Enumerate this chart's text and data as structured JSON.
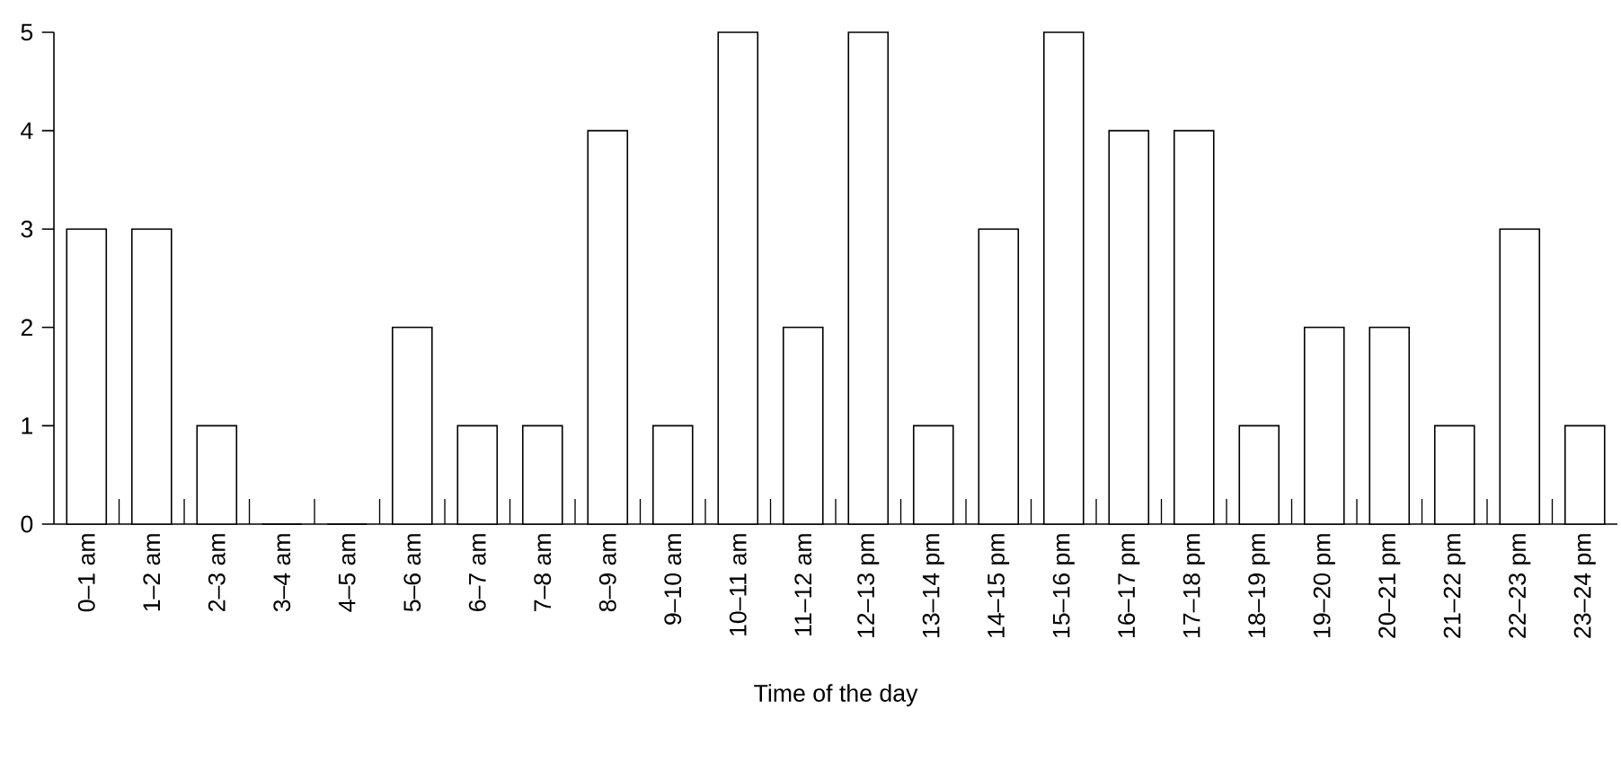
{
  "chart_data": {
    "type": "bar",
    "xlabel": "Time of the day",
    "categories": [
      "0–1 am",
      "1–2 am",
      "2–3 am",
      "3–4 am",
      "4–5 am",
      "5–6 am",
      "6–7 am",
      "7–8 am",
      "8–9 am",
      "9–10 am",
      "10–11 am",
      "11–12 am",
      "12–13 pm",
      "13–14 pm",
      "14–15 pm",
      "15–16 pm",
      "16–17 pm",
      "17–18 pm",
      "18–19 pm",
      "19–20 pm",
      "20–21 pm",
      "21–22 pm",
      "22–23 pm",
      "23–24 pm"
    ],
    "values": [
      3,
      3,
      1,
      0,
      0,
      2,
      1,
      1,
      4,
      1,
      5,
      2,
      5,
      1,
      3,
      5,
      4,
      4,
      1,
      2,
      2,
      1,
      3,
      1
    ],
    "color": "#ffffff",
    "ylim": [
      0,
      5
    ],
    "yticks": [
      0,
      1,
      2,
      3,
      4,
      5
    ]
  }
}
